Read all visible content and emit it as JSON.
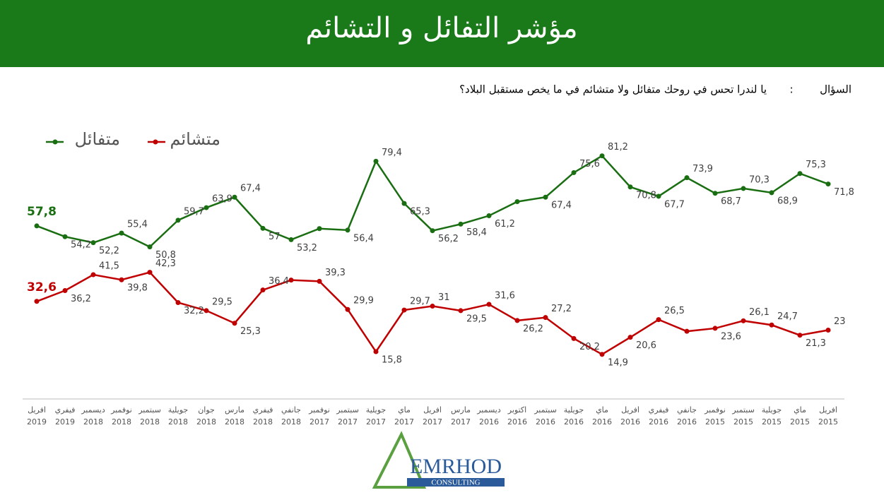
{
  "chart_data": {
    "type": "line",
    "title": "مؤشر التفائل و التشائم",
    "question_label": "السؤال",
    "question_sep": ":",
    "question": "يا لندرا تحس في روحك متفائل ولا متشائم في ما يخص مستقبل البلاد؟",
    "categories": [
      [
        "افريل",
        "2019"
      ],
      [
        "فيفري",
        "2019"
      ],
      [
        "ديسمبر",
        "2018"
      ],
      [
        "نوفمبر",
        "2018"
      ],
      [
        "سبتمبر",
        "2018"
      ],
      [
        "جويلية",
        "2018"
      ],
      [
        "جوان",
        "2018"
      ],
      [
        "مارس",
        "2018"
      ],
      [
        "فيفري",
        "2018"
      ],
      [
        "جانفي",
        "2018"
      ],
      [
        "نوفمبر",
        "2017"
      ],
      [
        "سبتمبر",
        "2017"
      ],
      [
        "جويلية",
        "2017"
      ],
      [
        "ماي",
        "2017"
      ],
      [
        "افريل",
        "2017"
      ],
      [
        "مارس",
        "2017"
      ],
      [
        "ديسمبر",
        "2016"
      ],
      [
        "اكتوبر",
        "2016"
      ],
      [
        "سبتمبر",
        "2016"
      ],
      [
        "جويلية",
        "2016"
      ],
      [
        "ماي",
        "2016"
      ],
      [
        "افريل",
        "2016"
      ],
      [
        "فيفري",
        "2016"
      ],
      [
        "جانفي",
        "2016"
      ],
      [
        "نوفمبر",
        "2015"
      ],
      [
        "سبتمبر",
        "2015"
      ],
      [
        "جويلية",
        "2015"
      ],
      [
        "ماي",
        "2015"
      ],
      [
        "افريل",
        "2015"
      ]
    ],
    "series": [
      {
        "name": "متفائل",
        "color": "#1a6e12",
        "values": [
          57.8,
          54.2,
          52.2,
          55.4,
          50.8,
          59.7,
          63.9,
          67.4,
          57,
          53.2,
          56.9,
          56.4,
          79.4,
          65.3,
          56.2,
          58.4,
          61.2,
          65.9,
          67.4,
          75.6,
          81.2,
          70.8,
          67.7,
          73.9,
          68.7,
          70.3,
          68.9,
          75.3,
          71.8
        ],
        "value_labels": [
          "57,8",
          "54,2",
          "52,2",
          "55,4",
          "50,8",
          "59,7",
          "63,9",
          "67,4",
          "57",
          "53,2",
          null,
          "56,4",
          "79,4",
          "65,3",
          "56,2",
          "58,4",
          "61,2",
          null,
          "67,4",
          "75,6",
          "81,2",
          "70,8",
          "67,7",
          "73,9",
          "68,7",
          "70,3",
          "68,9",
          "75,3",
          "71,8"
        ]
      },
      {
        "name": "متشائم",
        "color": "#c00000",
        "values": [
          32.6,
          36.2,
          41.5,
          39.8,
          42.3,
          32.2,
          29.5,
          25.3,
          36.4,
          39.7,
          39.3,
          29.9,
          15.8,
          29.7,
          31,
          29.5,
          31.6,
          26.2,
          27.2,
          20.2,
          14.9,
          20.6,
          26.5,
          22.6,
          23.6,
          26.1,
          24.7,
          21.3,
          23
        ],
        "value_labels": [
          "32,6",
          "36,2",
          "41,5",
          "39,8",
          "42,3",
          "32,2",
          "29,5",
          "25,3",
          "36,4",
          null,
          "39,3",
          "29,9",
          "15,8",
          "29,7",
          "31",
          "29,5",
          "31,6",
          "26,2",
          "27,2",
          "20,2",
          "14,9",
          "20,6",
          "26,5",
          null,
          "23,6",
          "26,1",
          "24,7",
          "21,3",
          "23"
        ]
      }
    ],
    "ylim": [
      0,
      100
    ],
    "logo": {
      "name": "EMRHOD",
      "sub": "CONSULTING"
    }
  }
}
